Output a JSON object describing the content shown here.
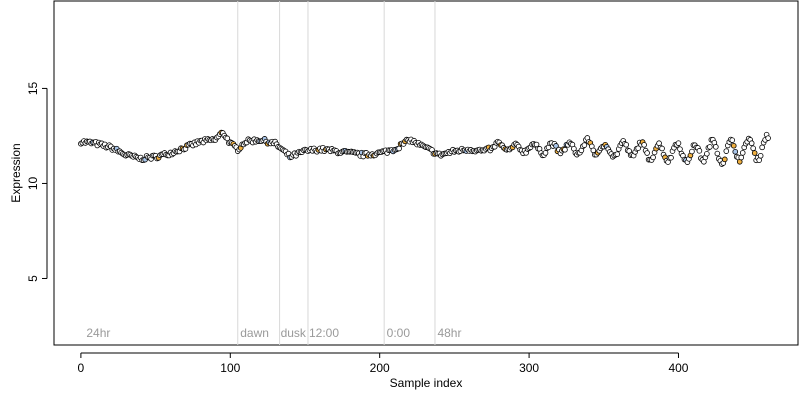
{
  "chart_data": {
    "type": "scatter",
    "title": "",
    "xlabel": "Sample index",
    "ylabel": "Expression",
    "xlim": [
      -18,
      480
    ],
    "ylim": [
      1.5,
      19.6
    ],
    "x_ticks": [
      0,
      100,
      200,
      300,
      400
    ],
    "y_ticks": [
      5,
      10,
      15
    ],
    "grid": false,
    "n_points": 461,
    "vertical_markers": [
      {
        "x": 105,
        "label": "dawn",
        "label_x": 106
      },
      {
        "x": 133,
        "label": "dusk",
        "label_x": 133
      },
      {
        "x": 152,
        "label": "12:00",
        "label_x": 152
      },
      {
        "x": 203,
        "label": "0:00",
        "label_x": 204
      },
      {
        "x": 237,
        "label": "48hr",
        "label_x": 238
      }
    ],
    "marker_start_label": {
      "label": "24hr",
      "label_x": 3
    },
    "point_colors": {
      "default": "#ffffff",
      "highlight_orange": "#f0b040",
      "highlight_blue": "#a8c4e8",
      "marker": "#d8d8d8"
    },
    "trend_knots": {
      "x": [
        0,
        10,
        20,
        30,
        40,
        50,
        60,
        70,
        80,
        90,
        95,
        100,
        105,
        110,
        120,
        130,
        140,
        150,
        160,
        170,
        180,
        190,
        200,
        210,
        220,
        230,
        240,
        250,
        260,
        270,
        280,
        290,
        300,
        310,
        320,
        330,
        340,
        350,
        360,
        370,
        380,
        390,
        400,
        410,
        420,
        430,
        440,
        450,
        460
      ],
      "y": [
        12.2,
        12.1,
        11.9,
        11.5,
        11.3,
        11.4,
        11.6,
        11.9,
        12.2,
        12.3,
        12.7,
        12.1,
        11.8,
        12.2,
        12.3,
        12.1,
        11.4,
        11.7,
        11.8,
        11.7,
        11.6,
        11.5,
        11.6,
        11.8,
        12.3,
        11.9,
        11.5,
        11.7,
        11.8,
        11.7,
        12.0,
        11.8,
        11.9,
        11.8,
        11.9,
        11.8,
        12.0,
        11.7,
        11.8,
        11.8,
        11.7,
        11.6,
        11.7,
        11.5,
        11.8,
        11.6,
        11.8,
        11.8,
        11.9
      ]
    },
    "oscillation": {
      "from_x": 275,
      "amplitude_start": 0.15,
      "amplitude_end": 0.6,
      "period": 12
    }
  }
}
